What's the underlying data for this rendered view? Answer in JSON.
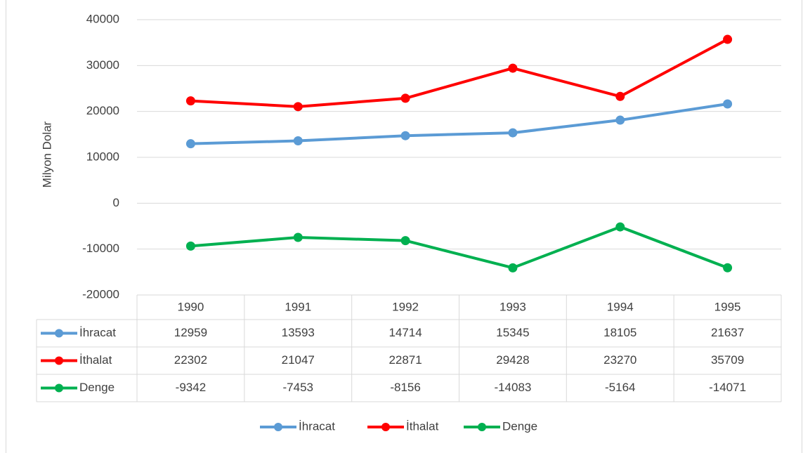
{
  "chart_data": {
    "type": "line",
    "y_label": "Milyon Dolar",
    "categories": [
      "1990",
      "1991",
      "1992",
      "1993",
      "1994",
      "1995"
    ],
    "series": [
      {
        "name": "İhracat",
        "color": "#5b9bd5",
        "values": [
          12959,
          13593,
          14714,
          15345,
          18105,
          21637
        ]
      },
      {
        "name": "İthalat",
        "color": "#ff0000",
        "values": [
          22302,
          21047,
          22871,
          29428,
          23270,
          35709
        ]
      },
      {
        "name": "Denge",
        "color": "#00b050",
        "values": [
          -9342,
          -7453,
          -8156,
          -14083,
          -5164,
          -14071
        ]
      }
    ],
    "ylim": [
      -20000,
      40000
    ],
    "yticks": [
      -20000,
      -10000,
      0,
      10000,
      20000,
      30000,
      40000
    ],
    "grid": true,
    "legend": "bottom"
  }
}
